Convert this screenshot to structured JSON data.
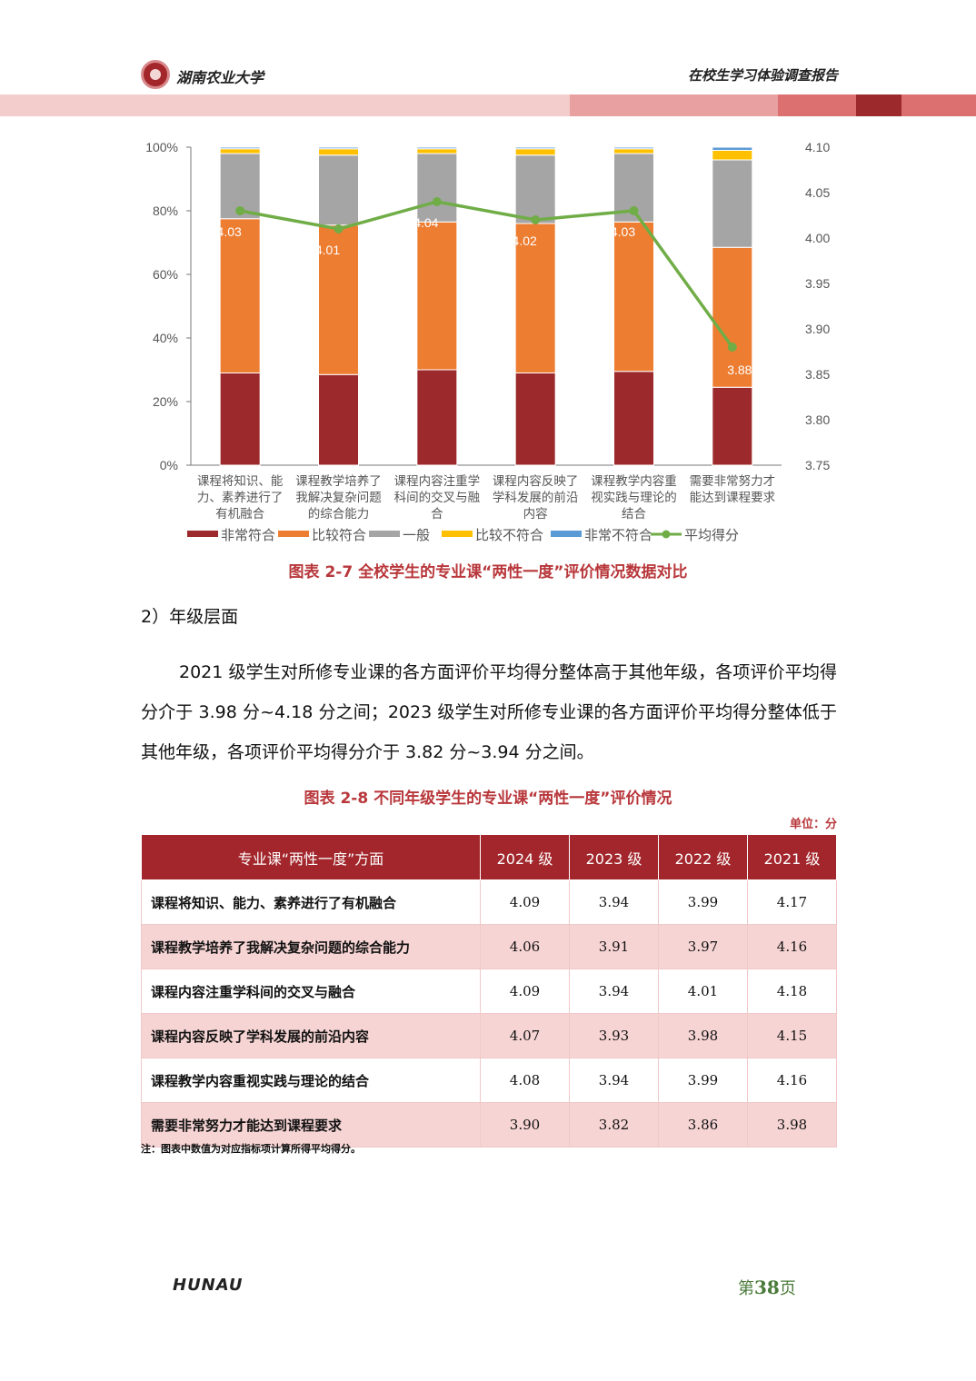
{
  "header": {
    "university": "湖南农业大学",
    "report_title": "在校生学习体验调查报告"
  },
  "colors": {
    "brand_red": "#a2262b",
    "caption_red": "#b8373b",
    "band_light": "#f3cccc",
    "band_mid": "#e8a0a0",
    "band_strong": "#dc6f70",
    "band_dark": "#9c2a2c"
  },
  "chart_data": {
    "type": "bar",
    "stacked": true,
    "categories": [
      [
        "课程将知识、能",
        "力、素养进行了",
        "有机融合"
      ],
      [
        "课程教学培养了",
        "我解决复杂问题",
        "的综合能力"
      ],
      [
        "课程内容注重学",
        "科间的交叉与融",
        "合"
      ],
      [
        "课程内容反映了",
        "学科发展的前沿",
        "内容"
      ],
      [
        "课程教学内容重",
        "视实践与理论的",
        "结合"
      ],
      [
        "需要非常努力才",
        "能达到课程要求"
      ]
    ],
    "y_left": {
      "ticks": [
        "0%",
        "20%",
        "40%",
        "60%",
        "80%",
        "100%"
      ],
      "range": [
        0,
        100
      ]
    },
    "y_right": {
      "ticks": [
        "3.75",
        "3.80",
        "3.85",
        "3.90",
        "3.95",
        "4.00",
        "4.05",
        "4.10"
      ],
      "range": [
        3.75,
        4.1
      ]
    },
    "series": [
      {
        "name": "非常符合",
        "color": "#9c2a2c",
        "values": [
          29,
          28.5,
          30,
          29,
          29.5,
          24.5
        ]
      },
      {
        "name": "比较符合",
        "color": "#ed7d31",
        "values": [
          48.5,
          47,
          46.5,
          47,
          47,
          44
        ]
      },
      {
        "name": "一般",
        "color": "#a5a5a5",
        "values": [
          20.5,
          22,
          21.5,
          21.5,
          21.5,
          27.5
        ]
      },
      {
        "name": "比较不符合",
        "color": "#ffc000",
        "values": [
          1.5,
          2,
          1.5,
          2,
          1.5,
          3
        ]
      },
      {
        "name": "非常不符合",
        "color": "#5b9bd5",
        "values": [
          0.5,
          0.5,
          0.5,
          0.5,
          0.5,
          1
        ]
      }
    ],
    "line": {
      "name": "平均得分",
      "color": "#70ad47",
      "values": [
        4.03,
        4.01,
        4.04,
        4.02,
        4.03,
        3.88
      ]
    },
    "line_labels": [
      "4.03",
      "4.01",
      "4.04",
      "4.02",
      "4.03",
      "3.88"
    ],
    "legend": [
      "非常符合",
      "比较符合",
      "一般",
      "比较不符合",
      "非常不符合",
      "平均得分"
    ],
    "legend_position": "bottom"
  },
  "figure_caption": "图表 2-7 全校学生的专业课“两性一度”评价情况数据对比",
  "section": {
    "subtitle": "2）年级层面",
    "paragraph": "2021 级学生对所修专业课的各方面评价平均得分整体高于其他年级，各项评价平均得分介于 3.98 分~4.18 分之间；2023 级学生对所修专业课的各方面评价平均得分整体低于其他年级，各项评价平均得分介于 3.82 分~3.94 分之间。"
  },
  "table": {
    "caption": "图表 2-8 不同年级学生的专业课“两性一度”评价情况",
    "unit": "单位：分",
    "headers": [
      "专业课“两性一度”方面",
      "2024 级",
      "2023 级",
      "2022 级",
      "2021 级"
    ],
    "rows": [
      [
        "课程将知识、能力、素养进行了有机融合",
        "4.09",
        "3.94",
        "3.99",
        "4.17"
      ],
      [
        "课程教学培养了我解决复杂问题的综合能力",
        "4.06",
        "3.91",
        "3.97",
        "4.16"
      ],
      [
        "课程内容注重学科间的交叉与融合",
        "4.09",
        "3.94",
        "4.01",
        "4.18"
      ],
      [
        "课程内容反映了学科发展的前沿内容",
        "4.07",
        "3.93",
        "3.98",
        "4.15"
      ],
      [
        "课程教学内容重视实践与理论的结合",
        "4.08",
        "3.94",
        "3.99",
        "4.16"
      ],
      [
        "需要非常努力才能达到课程要求",
        "3.90",
        "3.82",
        "3.86",
        "3.98"
      ]
    ],
    "note": "注：图表中数值为对应指标项计算所得平均得分。"
  },
  "footer": {
    "brand": "HUNAU",
    "page_prefix": "第",
    "page_number": "38",
    "page_suffix": "页"
  }
}
